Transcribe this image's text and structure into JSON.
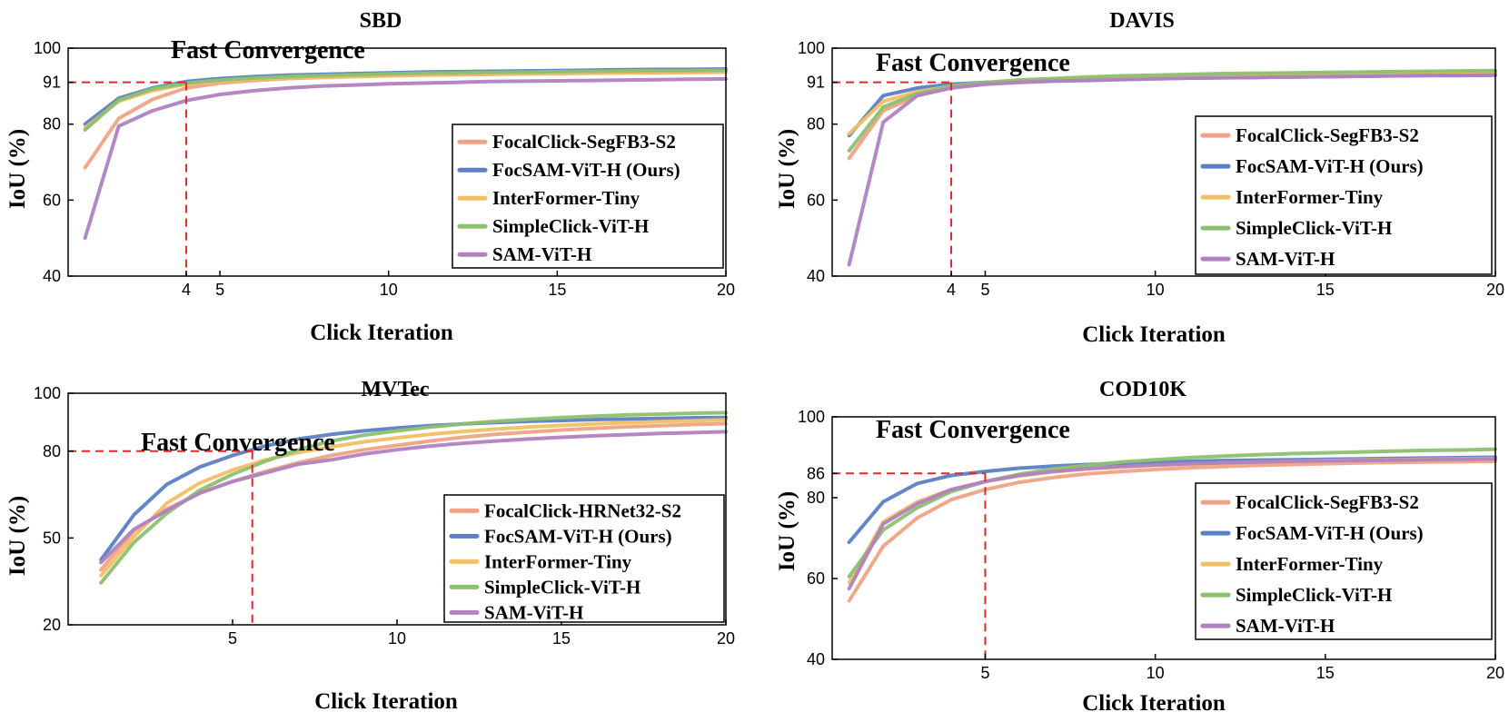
{
  "colors": {
    "FocalClick": "#F0A384",
    "FocSAM": "#5B7FC4",
    "InterFormer": "#F2C064",
    "SimpleClick": "#8DC070",
    "SAM": "#B082C0",
    "guide": "#E8262A",
    "axis": "#000000"
  },
  "chart_data": [
    {
      "type": "line",
      "title": "SBD",
      "annotation": "Fast Convergence",
      "xlabel": "Click Iteration",
      "ylabel": "IoU (%)",
      "xlim": [
        0.5,
        20
      ],
      "ylim": [
        40,
        100
      ],
      "xticks": [
        4,
        5,
        10,
        15,
        20
      ],
      "yticks": [
        40,
        60,
        80,
        91,
        100
      ],
      "guide": {
        "x": 4,
        "y": 91
      },
      "x": [
        1,
        2,
        3,
        4,
        5,
        6,
        7,
        8,
        9,
        10,
        11,
        12,
        13,
        14,
        15,
        16,
        17,
        18,
        19,
        20
      ],
      "series": [
        {
          "key": "FocalClick",
          "name": "FocalClick-SegFB3-S2",
          "values": [
            68.5,
            81.5,
            86.5,
            89.5,
            90.8,
            91.5,
            92,
            92.3,
            92.5,
            92.7,
            92.9,
            93,
            93.1,
            93.2,
            93.3,
            93.4,
            93.5,
            93.5,
            93.6,
            93.7
          ]
        },
        {
          "key": "FocSAM",
          "name": "FocSAM-ViT-H (Ours)",
          "values": [
            80,
            86.8,
            89.5,
            91.2,
            92,
            92.5,
            92.9,
            93.1,
            93.3,
            93.5,
            93.7,
            93.8,
            93.9,
            94,
            94.1,
            94.2,
            94.3,
            94.4,
            94.4,
            94.5
          ]
        },
        {
          "key": "InterFormer",
          "name": "InterFormer-Tiny",
          "values": [
            79,
            86,
            88.8,
            90.5,
            91.3,
            91.8,
            92.2,
            92.4,
            92.6,
            92.8,
            93,
            93.1,
            93.2,
            93.3,
            93.4,
            93.5,
            93.6,
            93.7,
            93.7,
            93.8
          ]
        },
        {
          "key": "SimpleClick",
          "name": "SimpleClick-ViT-H",
          "values": [
            78.5,
            86.3,
            89.3,
            90.8,
            91.6,
            92.1,
            92.5,
            92.8,
            93,
            93.2,
            93.4,
            93.5,
            93.6,
            93.7,
            93.8,
            93.9,
            94,
            94.1,
            94.1,
            94.2
          ]
        },
        {
          "key": "SAM",
          "name": "SAM-ViT-H",
          "values": [
            50,
            79.5,
            83.5,
            86.2,
            87.8,
            88.8,
            89.5,
            90,
            90.3,
            90.6,
            90.8,
            91,
            91.2,
            91.3,
            91.4,
            91.5,
            91.6,
            91.7,
            91.8,
            91.9
          ]
        }
      ]
    },
    {
      "type": "line",
      "title": "DAVIS",
      "annotation": "Fast Convergence",
      "xlabel": "Click Iteration",
      "ylabel": "IoU (%)",
      "xlim": [
        0.5,
        20
      ],
      "ylim": [
        40,
        100
      ],
      "xticks": [
        4,
        5,
        10,
        15,
        20
      ],
      "yticks": [
        40,
        60,
        80,
        91,
        100
      ],
      "guide": {
        "x": 4,
        "y": 91
      },
      "x": [
        1,
        2,
        3,
        4,
        5,
        6,
        7,
        8,
        9,
        10,
        11,
        12,
        13,
        14,
        15,
        16,
        17,
        18,
        19,
        20
      ],
      "series": [
        {
          "key": "FocalClick",
          "name": "FocalClick-SegFB3-S2",
          "values": [
            71,
            83.5,
            87.5,
            89.5,
            90.5,
            91,
            91.4,
            91.7,
            92,
            92.2,
            92.4,
            92.6,
            92.8,
            93,
            93.1,
            93.2,
            93.3,
            93.4,
            93.5,
            93.6
          ]
        },
        {
          "key": "FocSAM",
          "name": "FocSAM-ViT-H (Ours)",
          "values": [
            77,
            87.5,
            89.5,
            90.5,
            91,
            91.3,
            91.5,
            91.7,
            91.9,
            92,
            92.1,
            92.2,
            92.3,
            92.4,
            92.5,
            92.6,
            92.7,
            92.8,
            92.8,
            92.9
          ]
        },
        {
          "key": "InterFormer",
          "name": "InterFormer-Tiny",
          "values": [
            77.5,
            86,
            88.5,
            90,
            90.8,
            91.3,
            91.7,
            92,
            92.3,
            92.5,
            92.7,
            92.9,
            93.1,
            93.2,
            93.4,
            93.5,
            93.6,
            93.7,
            93.8,
            93.9
          ]
        },
        {
          "key": "SimpleClick",
          "name": "SimpleClick-ViT-H",
          "values": [
            73,
            84.5,
            88,
            90,
            91,
            91.6,
            92,
            92.4,
            92.7,
            92.9,
            93.1,
            93.3,
            93.4,
            93.5,
            93.6,
            93.7,
            93.8,
            93.9,
            94,
            94.1
          ]
        },
        {
          "key": "SAM",
          "name": "SAM-ViT-H",
          "values": [
            43,
            80.5,
            87.5,
            89.5,
            90.5,
            91,
            91.3,
            91.5,
            91.7,
            91.9,
            92.1,
            92.2,
            92.3,
            92.4,
            92.5,
            92.6,
            92.7,
            92.8,
            92.8,
            92.9
          ]
        }
      ]
    },
    {
      "type": "line",
      "title": "MVTec",
      "annotation": "Fast Convergence",
      "xlabel": "Click Iteration",
      "ylabel": "IoU (%)",
      "xlim": [
        0,
        20
      ],
      "ylim": [
        20,
        100
      ],
      "xticks": [
        5,
        10,
        15,
        20
      ],
      "yticks": [
        20,
        50,
        80,
        100
      ],
      "guide": {
        "x": 5.6,
        "y": 80
      },
      "x": [
        1,
        2,
        3,
        4,
        5,
        6,
        7,
        8,
        9,
        10,
        11,
        12,
        13,
        14,
        15,
        16,
        17,
        18,
        19,
        20
      ],
      "series": [
        {
          "key": "FocalClick",
          "name": "FocalClick-HRNet32-S2",
          "values": [
            39,
            52.5,
            60,
            65.5,
            69.5,
            73,
            76,
            78.5,
            80.5,
            82,
            83.5,
            84.8,
            85.8,
            86.6,
            87.3,
            87.9,
            88.4,
            88.8,
            89.2,
            89.5
          ]
        },
        {
          "key": "FocSAM",
          "name": "FocSAM-ViT-H (Ours)",
          "values": [
            42.5,
            58,
            68.5,
            74.5,
            78.5,
            81.8,
            84.2,
            85.8,
            87,
            88,
            88.8,
            89.4,
            89.9,
            90.3,
            90.6,
            90.9,
            91.1,
            91.3,
            91.5,
            91.6
          ]
        },
        {
          "key": "InterFormer",
          "name": "InterFormer-Tiny",
          "values": [
            37,
            50.5,
            62,
            69,
            73.5,
            77,
            79.5,
            81.5,
            83.2,
            84.6,
            85.8,
            86.8,
            87.6,
            88.3,
            88.9,
            89.4,
            89.8,
            90.2,
            90.5,
            90.8
          ]
        },
        {
          "key": "SimpleClick",
          "name": "SimpleClick-ViT-H",
          "values": [
            34.5,
            48.5,
            58.5,
            66.5,
            72,
            76.5,
            80.5,
            83.5,
            85.5,
            87,
            88.3,
            89.4,
            90.3,
            91,
            91.6,
            92.1,
            92.5,
            92.8,
            93.1,
            93.3
          ]
        },
        {
          "key": "SAM",
          "name": "SAM-ViT-H",
          "values": [
            41.5,
            53,
            59.5,
            65.5,
            69.5,
            72.5,
            75.5,
            77,
            79,
            80.5,
            81.7,
            82.7,
            83.5,
            84.2,
            84.8,
            85.3,
            85.7,
            86.1,
            86.4,
            86.7
          ]
        }
      ]
    },
    {
      "type": "line",
      "title": "COD10K",
      "annotation": "Fast Convergence",
      "xlabel": "Click Iteration",
      "ylabel": "IoU (%)",
      "xlim": [
        0.5,
        20
      ],
      "ylim": [
        40,
        100
      ],
      "xticks": [
        5,
        10,
        15,
        20
      ],
      "yticks": [
        40,
        60,
        80,
        86,
        100
      ],
      "guide": {
        "x": 5,
        "y": 86
      },
      "x": [
        1,
        2,
        3,
        4,
        5,
        6,
        7,
        8,
        9,
        10,
        11,
        12,
        13,
        14,
        15,
        16,
        17,
        18,
        19,
        20
      ],
      "series": [
        {
          "key": "FocalClick",
          "name": "FocalClick-SegFB3-S2",
          "values": [
            54.5,
            68,
            75,
            79.5,
            82,
            83.8,
            85,
            85.9,
            86.5,
            87,
            87.4,
            87.7,
            88,
            88.2,
            88.4,
            88.6,
            88.7,
            88.8,
            88.9,
            89
          ]
        },
        {
          "key": "FocSAM",
          "name": "FocSAM-ViT-H (Ours)",
          "values": [
            69,
            79,
            83.5,
            85.5,
            86.5,
            87.3,
            87.8,
            88.2,
            88.5,
            88.8,
            89,
            89.2,
            89.3,
            89.4,
            89.5,
            89.6,
            89.7,
            89.8,
            89.9,
            90
          ]
        },
        {
          "key": "InterFormer",
          "name": "InterFormer-Tiny",
          "values": [
            59,
            74,
            79,
            82,
            84,
            85.4,
            86.4,
            87.1,
            87.6,
            88,
            88.3,
            88.6,
            88.8,
            89,
            89.2,
            89.3,
            89.4,
            89.5,
            89.6,
            89.7
          ]
        },
        {
          "key": "SimpleClick",
          "name": "SimpleClick-ViT-H",
          "values": [
            60.5,
            72,
            77.5,
            81.5,
            84,
            85.8,
            87.1,
            88,
            88.8,
            89.4,
            89.9,
            90.3,
            90.6,
            90.9,
            91.1,
            91.3,
            91.5,
            91.7,
            91.8,
            92
          ]
        },
        {
          "key": "SAM",
          "name": "SAM-ViT-H",
          "values": [
            57.5,
            73.5,
            78.5,
            82,
            84,
            85.5,
            86.5,
            87.2,
            87.7,
            88.1,
            88.4,
            88.6,
            88.8,
            89,
            89.1,
            89.2,
            89.3,
            89.4,
            89.5,
            89.6
          ]
        }
      ]
    }
  ]
}
